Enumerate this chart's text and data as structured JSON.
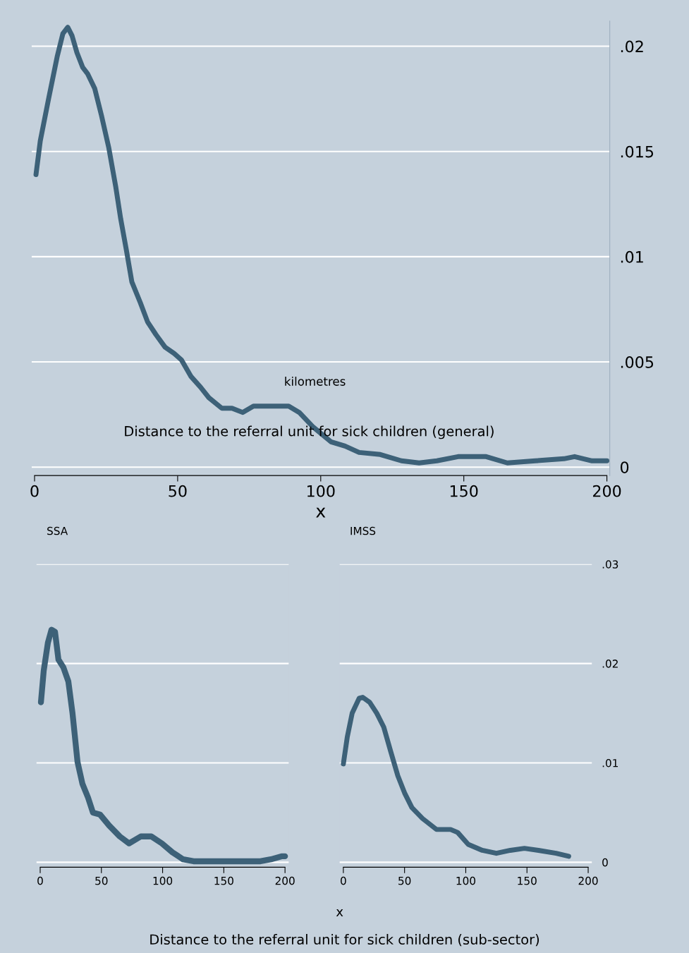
{
  "chart_data": [
    {
      "type": "line",
      "xlabel": "x",
      "annotations": [
        "kilometres",
        "Distance to the referral unit for sick children (general)"
      ],
      "color": "#3d6178",
      "grid": "y",
      "line_style": "solid",
      "x": [
        0.5,
        2.0,
        4.9,
        7.9,
        9.9,
        11.6,
        13.1,
        14.8,
        16.8,
        18.5,
        21.0,
        23.4,
        25.9,
        28.4,
        30.1,
        32.1,
        34.0,
        37.0,
        39.5,
        42.4,
        45.6,
        48.8,
        51.3,
        54.7,
        58.0,
        60.9,
        65.4,
        69.0,
        72.7,
        76.5,
        83.8,
        88.8,
        92.5,
        97.4,
        103.6,
        108.5,
        113.4,
        120.8,
        128.2,
        134.4,
        140.6,
        148.0,
        157.8,
        165.2,
        175.0,
        185.0,
        188.7,
        194.8,
        200.0
      ],
      "values": [
        0.0139,
        0.0155,
        0.0175,
        0.0195,
        0.0206,
        0.0209,
        0.0205,
        0.0197,
        0.019,
        0.0187,
        0.018,
        0.0167,
        0.0152,
        0.0133,
        0.0118,
        0.0103,
        0.0088,
        0.0078,
        0.0069,
        0.0063,
        0.0057,
        0.0054,
        0.0051,
        0.0043,
        0.0038,
        0.0033,
        0.0028,
        0.0028,
        0.0026,
        0.0029,
        0.0029,
        0.0029,
        0.0026,
        0.0019,
        0.0012,
        0.001,
        0.0007,
        0.0006,
        0.0003,
        0.0002,
        0.0003,
        0.0005,
        0.0005,
        0.0002,
        0.0003,
        0.0004,
        0.0005,
        0.0003,
        0.0003
      ],
      "xlim": [
        -1,
        201
      ],
      "ylim": [
        -0.0004,
        0.0212
      ],
      "xticks": [
        0,
        50,
        100,
        150,
        200
      ],
      "yticks": [
        0,
        {
          "value": 0.005,
          "label": ".005"
        },
        {
          "value": 0.01,
          "label": ".01"
        },
        {
          "value": 0.015,
          "label": ".015"
        },
        {
          "value": 0.02,
          "label": ".02"
        }
      ]
    },
    {
      "type": "line",
      "title": "SSA",
      "color": "#3d6178",
      "grid": "y",
      "line_style": "solid",
      "tick_labels": "x",
      "x": [
        0.6,
        2.9,
        6.3,
        9.2,
        12.1,
        14.9,
        19.0,
        23.0,
        26.4,
        30.5,
        34.5,
        39.1,
        43.1,
        48.9,
        56.3,
        65.0,
        72.6,
        82.2,
        90.8,
        99.4,
        108.0,
        116.7,
        125.3,
        139.7,
        179.9,
        188.5,
        197.1,
        200.0
      ],
      "values": [
        0.0161,
        0.0193,
        0.0221,
        0.0234,
        0.0232,
        0.0204,
        0.0196,
        0.0182,
        0.015,
        0.0101,
        0.0079,
        0.0065,
        0.005,
        0.0048,
        0.0037,
        0.0026,
        0.0019,
        0.0026,
        0.0026,
        0.0019,
        0.001,
        0.0003,
        0.0001,
        0.0001,
        0.0001,
        0.0003,
        0.0006,
        0.0006
      ],
      "xlim": [
        -3,
        203
      ],
      "ylim": [
        -0.0005,
        0.03
      ],
      "xticks": [
        0,
        50,
        100,
        150,
        200
      ],
      "yticks": [
        0,
        0.01,
        0.02,
        0.03
      ]
    },
    {
      "type": "line",
      "title": "IMSS",
      "xlabel": "x",
      "annotations": [
        "Distance to the referral unit for sick children (sub-sector)"
      ],
      "color": "#3d6178",
      "grid": "y",
      "line_style": "solid",
      "x": [
        0,
        3.2,
        7.2,
        12.9,
        15.8,
        21.5,
        27.3,
        33.0,
        38.8,
        44.5,
        50.3,
        56.0,
        64.7,
        76.1,
        87.6,
        93.4,
        102.0,
        113.5,
        125.0,
        136.4,
        147.9,
        159.4,
        173.8,
        184.1
      ],
      "values": [
        0.0099,
        0.0126,
        0.015,
        0.0165,
        0.0166,
        0.0161,
        0.015,
        0.0136,
        0.0111,
        0.0087,
        0.0069,
        0.0055,
        0.0044,
        0.0033,
        0.0033,
        0.003,
        0.0018,
        0.0012,
        0.0009,
        0.0012,
        0.0014,
        0.0012,
        0.0009,
        0.0006
      ],
      "xlim": [
        -3,
        203
      ],
      "ylim": [
        -0.0005,
        0.03
      ],
      "xticks": [
        0,
        50,
        100,
        150,
        200
      ],
      "yticks": [
        0,
        {
          "value": 0.01,
          "label": ".01"
        },
        {
          "value": 0.02,
          "label": ".02"
        },
        {
          "value": 0.03,
          "label": ".03"
        }
      ]
    }
  ]
}
